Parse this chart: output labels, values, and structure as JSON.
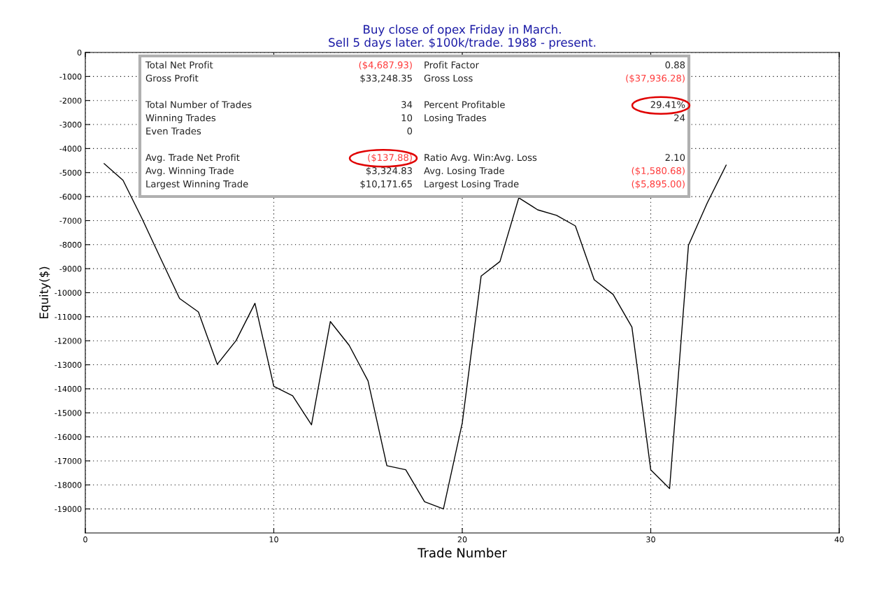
{
  "chart_data": {
    "type": "line",
    "title": "Buy close of opex Friday in March.\nSell 5 days later. $100k/trade. 1988 - present.",
    "xlabel": "Trade Number",
    "ylabel": "Equity($)",
    "x": [
      1,
      2,
      3,
      4,
      5,
      6,
      7,
      8,
      9,
      10,
      11,
      12,
      13,
      14,
      15,
      16,
      17,
      18,
      19,
      20,
      21,
      22,
      23,
      24,
      25,
      26,
      27,
      28,
      29,
      30,
      31,
      32,
      33,
      34
    ],
    "series": [
      {
        "color": "#000000",
        "values": [
          -4630,
          -5320,
          -6900,
          -8580,
          -10240,
          -10800,
          -12980,
          -11990,
          -10440,
          -13900,
          -14290,
          -15500,
          -11200,
          -12190,
          -13670,
          -17200,
          -17370,
          -18700,
          -19000,
          -15420,
          -9310,
          -8700,
          -6050,
          -6550,
          -6780,
          -7220,
          -9460,
          -10070,
          -11430,
          -17370,
          -18150,
          -8030,
          -6260,
          -4690
        ]
      }
    ],
    "xlim": [
      0,
      40
    ],
    "xticks": [
      0,
      10,
      20,
      30,
      40
    ],
    "ylim": [
      -20000,
      0
    ],
    "yticks": [
      0,
      -1000,
      -2000,
      -3000,
      -4000,
      -5000,
      -6000,
      -7000,
      -8000,
      -9000,
      -10000,
      -11000,
      -12000,
      -13000,
      -14000,
      -15000,
      -16000,
      -17000,
      -18000,
      -19000
    ],
    "grid": true,
    "line_style": "solid",
    "marker": "none",
    "legend": false,
    "annotations": [
      "Total Net Profit",
      "($4,687.93)",
      "Profit Factor",
      "0.88",
      "Gross Profit",
      "$33,248.35",
      "Gross Loss",
      "($37,936.28)",
      "Total Number of Trades",
      "34",
      "Percent Profitable",
      "29.41%",
      "Winning Trades",
      "10",
      "Losing Trades",
      "24",
      "Even Trades",
      "0",
      "Avg. Trade Net Profit",
      "($137.88)",
      "Ratio Avg. Win:Avg. Loss",
      "2.10",
      "Avg. Winning Trade",
      "$3,324.83",
      "Avg. Losing Trade",
      "($1,580.68)",
      "Largest Winning Trade",
      "$10,171.65",
      "Largest Losing Trade",
      "($5,895.00)"
    ]
  }
}
